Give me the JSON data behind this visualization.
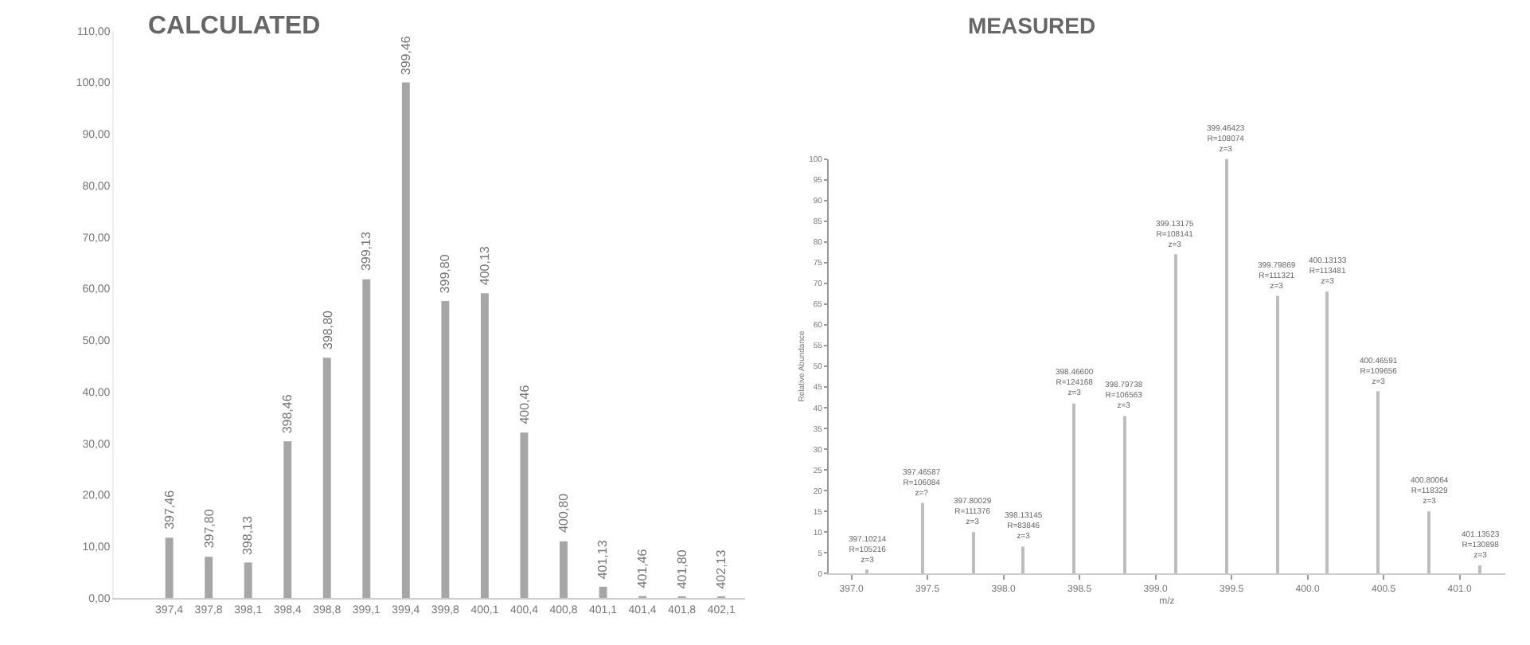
{
  "chart_data": [
    {
      "type": "bar",
      "title": "CALCULATED",
      "categories": [
        "397,4",
        "397,8",
        "398,1",
        "398,4",
        "398,8",
        "399,1",
        "399,4",
        "399,8",
        "400,1",
        "400,4",
        "400,8",
        "401,1",
        "401,4",
        "401,8",
        "402,1"
      ],
      "values": [
        11.7,
        8,
        6.9,
        30.4,
        46.6,
        61.8,
        100,
        57.6,
        59.1,
        32.1,
        11,
        2.2,
        0.4,
        0.2,
        0.1
      ],
      "annotations": [
        {
          "text": "397,46",
          "x": "397,4",
          "y": 11.7
        },
        {
          "text": "397,80",
          "x": "397,8",
          "y": 8
        },
        {
          "text": "398,13",
          "x": "398,1",
          "y": 6.9
        },
        {
          "text": "398,46",
          "x": "398,4",
          "y": 30.4
        },
        {
          "text": "398,80",
          "x": "398,8",
          "y": 46.6
        },
        {
          "text": "399,13",
          "x": "399,1",
          "y": 61.8
        },
        {
          "text": "399,46",
          "x": "399,4",
          "y": 100
        },
        {
          "text": "399,80",
          "x": "399,8",
          "y": 57.6
        },
        {
          "text": "400,13",
          "x": "400,1",
          "y": 59.1
        },
        {
          "text": "400,46",
          "x": "400,4",
          "y": 32.1
        },
        {
          "text": "400,80",
          "x": "400,8",
          "y": 11
        },
        {
          "text": "401,13",
          "x": "401,1",
          "y": 2.2
        },
        {
          "text": "401,46",
          "x": "401,4",
          "y": 0.4
        },
        {
          "text": "401,80",
          "x": "401,8",
          "y": 0.2
        },
        {
          "text": "402,13",
          "x": "402,1",
          "y": 0.1
        }
      ],
      "color": "#a6a6a6",
      "ylim": [
        0,
        110
      ],
      "yticks": [
        {
          "value": 0,
          "label": "0,00"
        },
        {
          "value": 10,
          "label": "10,00"
        },
        {
          "value": 20,
          "label": "20,00"
        },
        {
          "value": 30,
          "label": "30,00"
        },
        {
          "value": 40,
          "label": "40,00"
        },
        {
          "value": 50,
          "label": "50,00"
        },
        {
          "value": 60,
          "label": "60,00"
        },
        {
          "value": 70,
          "label": "70,00"
        },
        {
          "value": 80,
          "label": "80,00"
        },
        {
          "value": 90,
          "label": "90,00"
        },
        {
          "value": 100,
          "label": "100,00"
        },
        {
          "value": 110,
          "label": "110,00"
        }
      ],
      "grid": false,
      "legend": false
    },
    {
      "type": "bar",
      "title": "MEASURED",
      "xlabel": "m/z",
      "ylabel": "Relative Abundance",
      "x": [
        397.10214,
        397.46587,
        397.80029,
        398.13145,
        398.466,
        398.79738,
        399.13175,
        399.46423,
        399.79869,
        400.13133,
        400.46591,
        400.80064,
        401.13523
      ],
      "values": [
        1,
        17,
        10,
        6.5,
        41,
        38,
        77,
        100,
        67,
        68,
        44,
        15,
        2
      ],
      "color": "#bdbdbd",
      "xlim": [
        396.85,
        401.3
      ],
      "ylim": [
        0,
        100
      ],
      "xticks": [
        {
          "value": 397,
          "label": "397.0"
        },
        397.5,
        {
          "value": 398,
          "label": "398.0"
        },
        398.5,
        {
          "value": 399,
          "label": "399.0"
        },
        399.5,
        {
          "value": 400,
          "label": "400.0"
        },
        400.5,
        {
          "value": 401,
          "label": "401.0"
        }
      ],
      "yticks": [
        0,
        5,
        10,
        15,
        20,
        25,
        30,
        35,
        40,
        45,
        50,
        55,
        60,
        65,
        70,
        75,
        80,
        85,
        90,
        95,
        100
      ],
      "grid": false,
      "legend": false,
      "annotations": [
        {
          "text": "397.10214\nR=105216\nz=3",
          "x": 397.10214,
          "y": 1
        },
        {
          "text": "397.46587\nR=106084\nz=?",
          "x": 397.46587,
          "y": 17
        },
        {
          "text": "397.80029\nR=111376\nz=3",
          "x": 397.80029,
          "y": 10
        },
        {
          "text": "398.13145\nR=83846\nz=3",
          "x": 398.13145,
          "y": 6.5
        },
        {
          "text": "398.46600\nR=124168\nz=3",
          "x": 398.466,
          "y": 41
        },
        {
          "text": "398.79738\nR=106563\nz=3",
          "x": 398.79738,
          "y": 38
        },
        {
          "text": "399.13175\nR=108141\nz=3",
          "x": 399.13175,
          "y": 77
        },
        {
          "text": "399.46423\nR=108074\nz=3",
          "x": 399.46423,
          "y": 100
        },
        {
          "text": "399.79869\nR=111321\nz=3",
          "x": 399.79869,
          "y": 67
        },
        {
          "text": "400.13133\nR=113481\nz=3",
          "x": 400.13133,
          "y": 68
        },
        {
          "text": "400.46591\nR=109656\nz=3",
          "x": 400.46591,
          "y": 44
        },
        {
          "text": "400.80064\nR=118329\nz=3",
          "x": 400.80064,
          "y": 15
        },
        {
          "text": "401.13523\nR=130898\nz=3",
          "x": 401.13523,
          "y": 2
        }
      ]
    }
  ]
}
